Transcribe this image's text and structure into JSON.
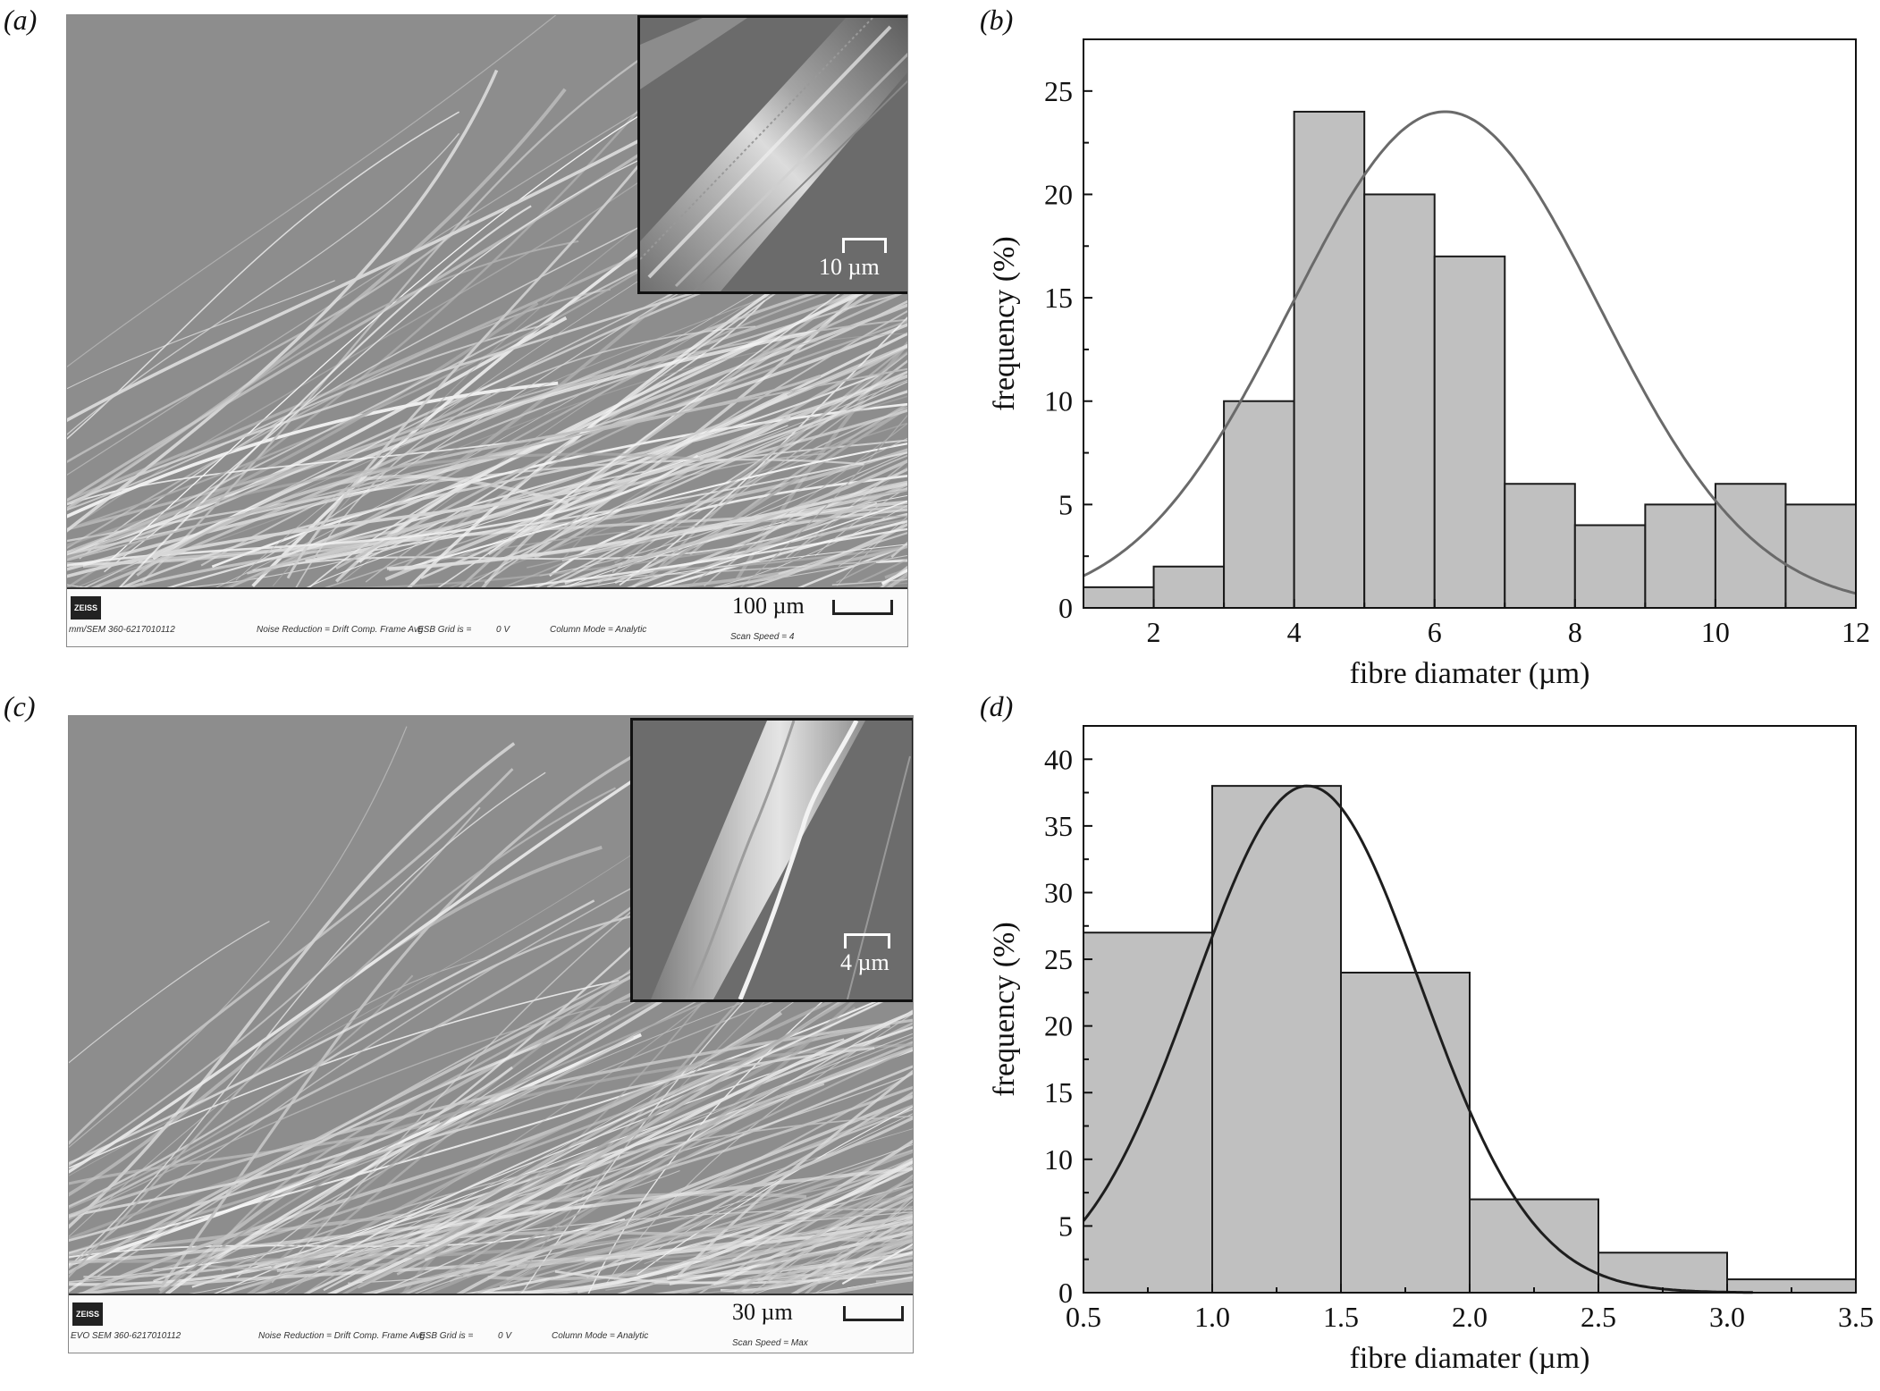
{
  "panels": {
    "a": {
      "letter": "(a)",
      "scale_bar": "100 µm",
      "inset_scale_bar": "10 µm",
      "databar": {
        "brand": "ZEISS",
        "device": "mm/SEM 360-6217010112",
        "noise": "Noise Reduction = Drift Comp. Frame Avg",
        "grid": "ESB Grid is =",
        "grid_value": "0 V",
        "column": "Column Mode = Analytic",
        "scan": "Scan Speed = 4"
      }
    },
    "b": {
      "letter": "(b)"
    },
    "c": {
      "letter": "(c)",
      "scale_bar": "30 µm",
      "inset_scale_bar": "4 µm",
      "databar": {
        "brand": "ZEISS",
        "device": "EVO SEM 360-6217010112",
        "noise": "Noise Reduction = Drift Comp. Frame Avg",
        "grid": "ESB Grid is =",
        "grid_value": "0 V",
        "column": "Column Mode = Analytic",
        "scan": "Scan Speed = Max"
      }
    },
    "d": {
      "letter": "(d)"
    }
  },
  "chart_data": [
    {
      "type": "bar",
      "panel": "b",
      "bin_edges": [
        1,
        2,
        3,
        4,
        5,
        6,
        7,
        8,
        9,
        10,
        11,
        12
      ],
      "values": [
        1,
        2,
        10,
        24,
        20,
        17,
        6,
        4,
        5,
        6,
        5
      ],
      "fit": {
        "type": "gaussian",
        "mean": 6.15,
        "sd": 2.2,
        "peak": 24
      },
      "xlabel": "fibre diamater (µm)",
      "ylabel": "frequency (%)",
      "xlim": [
        1,
        12
      ],
      "ylim": [
        0,
        27.5
      ],
      "xticks": [
        2,
        4,
        6,
        8,
        10,
        12
      ],
      "yticks": [
        0,
        5,
        10,
        15,
        20,
        25
      ],
      "colors": {
        "bar": "#c0c0c0",
        "fit": "#6a6a6a"
      }
    },
    {
      "type": "bar",
      "panel": "d",
      "bin_edges": [
        0.5,
        1.0,
        1.5,
        2.0,
        2.5,
        3.0,
        3.5
      ],
      "values": [
        27,
        38,
        24,
        7,
        3,
        1
      ],
      "fit": {
        "type": "gaussian",
        "mean": 1.37,
        "sd": 0.44,
        "peak": 38,
        "x_end": 3.1
      },
      "xlabel": "fibre diamater (µm)",
      "ylabel": "frequency (%)",
      "xlim": [
        0.5,
        3.5
      ],
      "ylim": [
        0,
        42.5
      ],
      "xticks": [
        "0.5",
        "1.0",
        "1.5",
        "2.0",
        "2.5",
        "3.0",
        "3.5"
      ],
      "yticks": [
        0,
        5,
        10,
        15,
        20,
        25,
        30,
        35,
        40
      ],
      "colors": {
        "bar": "#c0c0c0",
        "fit": "#1e1e1e"
      }
    }
  ]
}
